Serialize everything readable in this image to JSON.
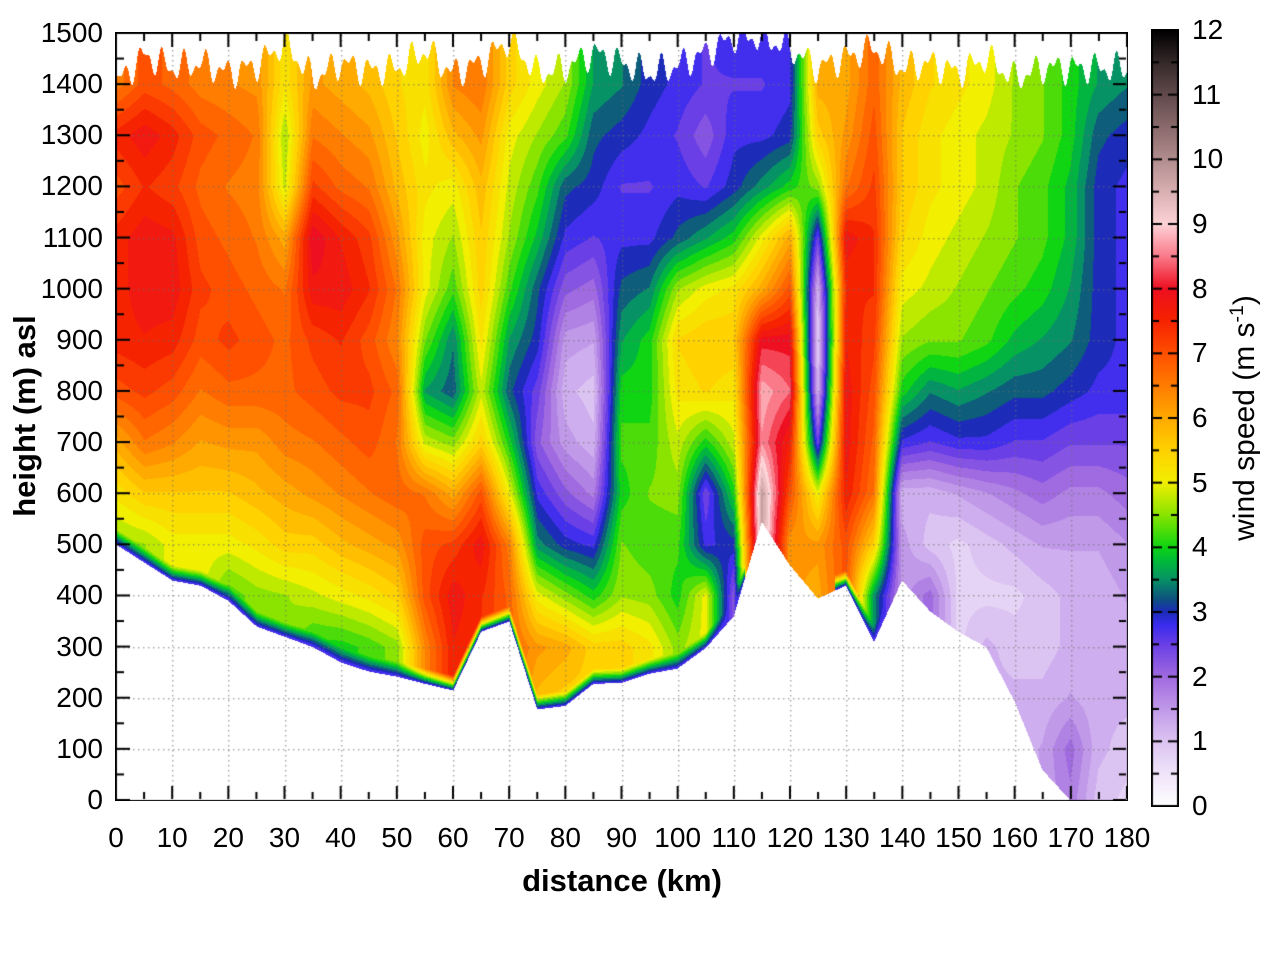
{
  "chart_data": {
    "type": "heatmap",
    "xlabel": "distance (km)",
    "ylabel": "height (m) asl",
    "colorbar_label_parts": {
      "pre": "wind speed (m s",
      "sup": "-1",
      "post": ")"
    },
    "x_range": [
      0,
      180
    ],
    "y_range": [
      0,
      1500
    ],
    "v_range": [
      0,
      12
    ],
    "x_tick_labels": [
      0,
      10,
      20,
      30,
      40,
      50,
      60,
      70,
      80,
      90,
      100,
      110,
      120,
      130,
      140,
      150,
      160,
      170,
      180
    ],
    "x_minor_step": 5,
    "y_tick_labels": [
      0,
      100,
      200,
      300,
      400,
      500,
      600,
      700,
      800,
      900,
      1000,
      1100,
      1200,
      1300,
      1400,
      1500
    ],
    "y_minor_step": 50,
    "colorbar_tick_labels": [
      0,
      1,
      2,
      3,
      4,
      5,
      6,
      7,
      8,
      9,
      10,
      11,
      12
    ],
    "colorbar_minor_step": 0.5,
    "grid": "dotted",
    "legend_position": "right-colorbar",
    "palette": [
      [
        0.0,
        "#ffffff"
      ],
      [
        0.5,
        "#f0e4fa"
      ],
      [
        1.0,
        "#dcc4f2"
      ],
      [
        1.5,
        "#c199e9"
      ],
      [
        2.0,
        "#a06ae0"
      ],
      [
        2.5,
        "#6a3fe6"
      ],
      [
        2.8,
        "#3a2cee"
      ],
      [
        3.0,
        "#1c2cb8"
      ],
      [
        3.2,
        "#0e537f"
      ],
      [
        3.5,
        "#079266"
      ],
      [
        3.8,
        "#00bc38"
      ],
      [
        4.0,
        "#0fd513"
      ],
      [
        4.5,
        "#8ae400"
      ],
      [
        5.0,
        "#f2ef00"
      ],
      [
        5.5,
        "#ffd200"
      ],
      [
        6.0,
        "#ffaa00"
      ],
      [
        6.5,
        "#ff7d00"
      ],
      [
        7.0,
        "#ff5000"
      ],
      [
        7.5,
        "#f62300"
      ],
      [
        8.0,
        "#ee0f20"
      ],
      [
        8.5,
        "#fa7a8a"
      ],
      [
        9.0,
        "#fdd3d7"
      ],
      [
        9.5,
        "#dab1b3"
      ],
      [
        10.0,
        "#b28e8f"
      ],
      [
        10.5,
        "#8b6b6c"
      ],
      [
        11.0,
        "#624b4c"
      ],
      [
        11.5,
        "#362a2b"
      ],
      [
        12.0,
        "#000000"
      ]
    ],
    "x_step_km": 5,
    "y_step_m": 100,
    "terrain_m": [
      500,
      465,
      430,
      420,
      390,
      340,
      320,
      300,
      270,
      252,
      242,
      228,
      215,
      330,
      350,
      178,
      185,
      228,
      230,
      248,
      258,
      298,
      360,
      545,
      460,
      395,
      420,
      310,
      430,
      370,
      330,
      300,
      195,
      60,
      0,
      0,
      0
    ],
    "top_edge_m": [
      1410,
      1465,
      1440,
      1450,
      1430,
      1445,
      1490,
      1420,
      1450,
      1435,
      1440,
      1475,
      1430,
      1450,
      1495,
      1430,
      1440,
      1470,
      1450,
      1430,
      1445,
      1470,
      1500,
      1500,
      1480,
      1440,
      1460,
      1480,
      1440,
      1450,
      1430,
      1460,
      1420,
      1440,
      1440,
      1440,
      1440
    ],
    "values": [
      [
        null,
        null,
        null,
        null,
        null,
        4.5,
        5.2,
        6.0,
        7.0,
        7.5,
        7.5,
        7.5,
        7.0,
        7.5,
        6.5,
        null
      ],
      [
        null,
        null,
        null,
        null,
        null,
        4.6,
        5.6,
        6.6,
        7.2,
        7.6,
        7.8,
        7.8,
        7.4,
        7.8,
        7.0,
        null
      ],
      [
        null,
        null,
        null,
        null,
        null,
        5.0,
        5.6,
        6.4,
        7.0,
        7.5,
        7.8,
        7.7,
        7.2,
        7.5,
        6.8,
        null
      ],
      [
        null,
        null,
        null,
        null,
        null,
        5.0,
        5.6,
        6.1,
        6.6,
        7.0,
        7.2,
        7.0,
        6.8,
        7.0,
        6.5,
        null
      ],
      [
        null,
        null,
        null,
        null,
        4.2,
        5.0,
        5.6,
        6.2,
        6.8,
        7.2,
        7.0,
        6.8,
        6.6,
        6.8,
        6.4,
        null
      ],
      [
        null,
        null,
        null,
        null,
        4.5,
        5.2,
        5.8,
        6.2,
        6.8,
        7.0,
        6.8,
        6.6,
        6.5,
        6.6,
        6.3,
        null
      ],
      [
        null,
        null,
        null,
        null,
        4.6,
        5.5,
        6.0,
        6.5,
        6.8,
        6.8,
        6.6,
        6.0,
        4.8,
        4.6,
        5.2,
        null
      ],
      [
        null,
        null,
        null,
        4.0,
        4.8,
        5.5,
        6.2,
        6.6,
        7.0,
        7.2,
        7.8,
        8.1,
        7.2,
        6.6,
        6.2,
        null
      ],
      [
        null,
        null,
        null,
        4.0,
        5.0,
        5.8,
        6.4,
        6.8,
        7.2,
        7.4,
        7.8,
        7.6,
        6.8,
        6.4,
        6.0,
        null
      ],
      [
        null,
        null,
        null,
        4.2,
        5.2,
        6.0,
        6.6,
        7.0,
        7.2,
        7.0,
        7.4,
        7.2,
        6.6,
        6.2,
        5.8,
        null
      ],
      [
        null,
        null,
        null,
        4.5,
        5.5,
        6.2,
        6.8,
        6.6,
        6.8,
        6.4,
        6.6,
        6.2,
        5.8,
        5.6,
        5.4,
        null
      ],
      [
        null,
        null,
        null,
        6.4,
        7.0,
        7.0,
        6.6,
        4.8,
        3.6,
        4.4,
        5.0,
        5.0,
        5.2,
        5.0,
        5.2,
        null
      ],
      [
        null,
        null,
        null,
        7.6,
        7.8,
        7.2,
        6.0,
        4.5,
        3.2,
        3.4,
        4.2,
        4.6,
        5.0,
        5.8,
        6.4,
        null
      ],
      [
        null,
        null,
        null,
        null,
        7.4,
        7.8,
        7.0,
        5.5,
        4.8,
        5.2,
        5.5,
        5.6,
        5.8,
        6.2,
        6.6,
        null
      ],
      [
        null,
        null,
        null,
        null,
        6.8,
        6.5,
        5.0,
        4.0,
        3.2,
        3.6,
        4.2,
        4.6,
        4.8,
        5.0,
        5.5,
        null
      ],
      [
        null,
        null,
        5.8,
        6.2,
        5.0,
        3.5,
        2.8,
        2.2,
        2.5,
        3.0,
        3.2,
        3.8,
        4.2,
        4.6,
        5.0,
        null
      ],
      [
        null,
        null,
        5.5,
        6.0,
        4.5,
        3.0,
        2.2,
        1.5,
        1.2,
        1.5,
        2.2,
        2.8,
        3.2,
        4.2,
        4.6,
        null
      ],
      [
        null,
        null,
        null,
        5.5,
        4.0,
        2.8,
        1.8,
        1.2,
        1.0,
        1.4,
        2.0,
        2.6,
        3.0,
        3.2,
        3.6,
        null
      ],
      [
        null,
        null,
        null,
        5.5,
        4.6,
        4.4,
        4.0,
        4.2,
        4.0,
        3.6,
        3.2,
        2.8,
        2.6,
        3.0,
        3.4,
        null
      ],
      [
        null,
        null,
        null,
        5.2,
        4.5,
        4.2,
        4.4,
        4.2,
        4.0,
        4.0,
        3.4,
        2.8,
        2.6,
        2.8,
        3.0,
        null
      ],
      [
        null,
        null,
        null,
        4.5,
        4.0,
        4.2,
        4.5,
        4.8,
        5.2,
        5.4,
        4.6,
        3.2,
        2.8,
        2.6,
        2.8,
        null
      ],
      [
        null,
        null,
        null,
        null,
        5.0,
        2.8,
        2.4,
        4.0,
        5.4,
        5.6,
        5.0,
        3.6,
        2.6,
        2.2,
        2.6,
        null
      ],
      [
        null,
        null,
        null,
        null,
        2.2,
        3.0,
        4.0,
        4.8,
        5.2,
        5.6,
        5.2,
        4.0,
        3.0,
        2.8,
        2.6,
        2.8
      ],
      [
        null,
        null,
        null,
        null,
        null,
        null,
        9.8,
        8.6,
        8.8,
        8.0,
        6.0,
        5.0,
        3.5,
        2.8,
        2.6,
        2.8
      ],
      [
        null,
        null,
        null,
        null,
        null,
        6.2,
        7.0,
        7.6,
        8.4,
        8.0,
        7.0,
        6.0,
        4.0,
        3.0,
        2.8,
        null
      ],
      [
        null,
        null,
        null,
        null,
        6.0,
        6.2,
        5.0,
        2.5,
        1.2,
        0.8,
        1.2,
        2.5,
        4.5,
        5.5,
        6.0,
        null
      ],
      [
        null,
        null,
        null,
        null,
        null,
        7.0,
        7.6,
        7.8,
        7.8,
        7.6,
        7.4,
        7.8,
        6.6,
        6.2,
        6.0,
        null
      ],
      [
        null,
        null,
        null,
        null,
        3.5,
        5.5,
        6.6,
        6.8,
        7.0,
        7.2,
        7.4,
        7.4,
        7.2,
        7.0,
        6.8,
        null
      ],
      [
        null,
        null,
        null,
        null,
        null,
        1.5,
        1.2,
        2.8,
        4.0,
        4.6,
        5.0,
        5.4,
        5.6,
        5.6,
        5.8,
        null
      ],
      [
        null,
        null,
        null,
        null,
        2.0,
        1.0,
        1.2,
        2.6,
        3.4,
        4.4,
        4.8,
        5.0,
        5.2,
        5.2,
        5.4,
        null
      ],
      [
        null,
        null,
        null,
        null,
        0.8,
        0.8,
        1.4,
        2.8,
        3.6,
        4.4,
        4.6,
        4.8,
        5.0,
        5.0,
        5.2,
        null
      ],
      [
        null,
        null,
        null,
        1.2,
        0.8,
        1.0,
        1.6,
        2.8,
        3.4,
        4.2,
        4.4,
        4.6,
        4.8,
        4.8,
        5.0,
        null
      ],
      [
        null,
        null,
        1.2,
        1.0,
        0.8,
        1.2,
        1.8,
        2.6,
        3.2,
        3.8,
        4.2,
        4.4,
        4.4,
        4.6,
        4.6,
        null
      ],
      [
        null,
        1.4,
        1.2,
        1.0,
        1.0,
        1.4,
        2.0,
        2.6,
        3.2,
        3.6,
        4.0,
        4.2,
        4.2,
        4.4,
        4.4,
        null
      ],
      [
        1.8,
        2.0,
        1.4,
        1.2,
        1.2,
        1.4,
        1.8,
        2.4,
        3.0,
        3.4,
        3.6,
        3.8,
        3.8,
        4.0,
        4.0,
        null
      ],
      [
        1.0,
        1.2,
        1.2,
        1.2,
        1.2,
        1.4,
        1.8,
        2.4,
        2.8,
        3.0,
        3.0,
        3.0,
        3.0,
        3.2,
        3.6,
        null
      ],
      [
        0.8,
        1.0,
        1.2,
        1.2,
        1.4,
        1.6,
        2.0,
        2.4,
        2.8,
        2.8,
        2.8,
        2.8,
        2.8,
        3.0,
        3.4,
        null
      ]
    ]
  }
}
